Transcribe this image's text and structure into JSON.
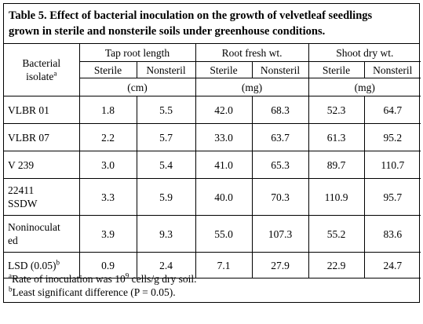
{
  "caption": {
    "line1": "Table 5. Effect of bacterial inoculation on the growth of velvetleaf seedlings",
    "line2": "grown in sterile and nonsterile soils under greenhouse conditions."
  },
  "header": {
    "isolate_line1": "Bacterial",
    "isolate_line2": "isolate",
    "isolate_sup": "a",
    "groups": [
      "Tap root length",
      "Root fresh wt.",
      "Shoot dry wt."
    ],
    "sub": [
      "Sterile",
      "Nonsteril",
      "Sterile",
      "Nonsteril",
      "Sterile",
      "Nonsteril"
    ],
    "units": [
      "(cm)",
      "(mg)",
      "(mg)"
    ]
  },
  "rows": [
    {
      "label": "VLBR 01",
      "values": [
        "1.8",
        "5.5",
        "42.0",
        "68.3",
        "52.3",
        "64.7"
      ]
    },
    {
      "label": "VLBR 07",
      "values": [
        "2.2",
        "5.7",
        "33.0",
        "63.7",
        "61.3",
        "95.2"
      ]
    },
    {
      "label": "V 239",
      "values": [
        "3.0",
        "5.4",
        "41.0",
        "65.3",
        "89.7",
        "110.7"
      ]
    },
    {
      "label_line1": "22411",
      "label_line2": "SSDW",
      "values": [
        "3.3",
        "5.9",
        "40.0",
        "70.3",
        "110.9",
        "95.7"
      ]
    },
    {
      "label_line1": "Noninoculat",
      "label_line2": "ed",
      "values": [
        "3.9",
        "9.3",
        "55.0",
        "107.3",
        "55.2",
        "83.6"
      ]
    },
    {
      "label": "LSD (0.05)",
      "label_sup": "b",
      "values": [
        "0.9",
        "2.4",
        "7.1",
        "27.9",
        "22.9",
        "24.7"
      ]
    }
  ],
  "footnotes": {
    "a_mark": "a",
    "a_text_pre": "Rate of inoculation was 10",
    "a_exp": "9",
    "a_text_post": " cells/g dry soil.",
    "b_mark": "b",
    "b_text": "Least significant difference (P = 0.05)."
  }
}
